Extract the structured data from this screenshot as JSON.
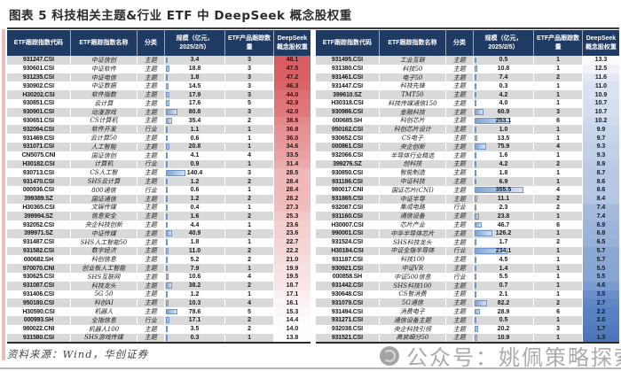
{
  "title": "图表 5  科技相关主题&行业 ETF 中 DeepSeek 概念股权重",
  "source": "资料来源：Wind，华创证券",
  "watermark": "公众号：姚佩策略探索",
  "columns": [
    "ETF跟踪指数代码",
    "ETF跟踪指数名称",
    "分类",
    "规模（亿元，2025/2/5）",
    "ETF产品跟踪数量",
    "DeepSeek概念股权重"
  ],
  "color_scale": {
    "min": 1.3,
    "mid": 13.55,
    "max": 48.1,
    "red": "#d95c5f",
    "blue": "#4a77bc",
    "white": "#ffffff"
  },
  "bar_max": 355.5,
  "left_rows": [
    {
      "code": "931247.CSI",
      "name": "中证信创",
      "cat": "主题",
      "scale": "3.4",
      "count": "3",
      "weight": "48.1"
    },
    {
      "code": "930601.CSI",
      "name": "中证软件",
      "cat": "主题",
      "scale": "18.8",
      "count": "3",
      "weight": "47.5"
    },
    {
      "code": "931235.CSI",
      "name": "中证电信",
      "cat": "主题",
      "scale": "1.8",
      "count": "3",
      "weight": "47.2"
    },
    {
      "code": "930902.CSI",
      "name": "中证数据",
      "cat": "主题",
      "scale": "14.5",
      "count": "3",
      "weight": "46.3"
    },
    {
      "code": "H30202.CSI",
      "name": "软件指数",
      "cat": "主题",
      "scale": "17.9",
      "count": "3",
      "weight": "44.0"
    },
    {
      "code": "930851.CSI",
      "name": "云计算",
      "cat": "主题",
      "scale": "17.6",
      "count": "5",
      "weight": "42.9"
    },
    {
      "code": "930901.CSI",
      "name": "动漫游戏",
      "cat": "主题",
      "scale": "80.8",
      "count": "3",
      "weight": "42.0"
    },
    {
      "code": "930651.CSI",
      "name": "CS计算机",
      "cat": "主题",
      "scale": "35.4",
      "count": "2",
      "weight": "38.6"
    },
    {
      "code": "932094.CSI",
      "name": "软件开发",
      "cat": "行业",
      "scale": "1.1",
      "count": "1",
      "weight": "36.8"
    },
    {
      "code": "931469.CSI",
      "name": "云计算50",
      "cat": "主题",
      "scale": "0.6",
      "count": "1",
      "weight": "36.0"
    },
    {
      "code": "931071.CSI",
      "name": "人工智能",
      "cat": "主题",
      "scale": "20.8",
      "count": "1",
      "weight": "34.6"
    },
    {
      "code": "CN5075.CNI",
      "name": "国证信创",
      "cat": "主题",
      "scale": "4.1",
      "count": "4",
      "weight": "33.5"
    },
    {
      "code": "H30182.CSI",
      "name": "计算机",
      "cat": "行业",
      "scale": "0.9",
      "count": "1",
      "weight": "31.4"
    },
    {
      "code": "930713.CSI",
      "name": "CS人工智",
      "cat": "主题",
      "scale": "140.4",
      "count": "3",
      "weight": "28.5"
    },
    {
      "code": "931470.CSI",
      "name": "SHS云计算",
      "cat": "主题",
      "scale": "1.2",
      "count": "2",
      "weight": "28.4"
    },
    {
      "code": "000936.CSI",
      "name": "800通信",
      "cat": "行业",
      "scale": "0.6",
      "count": "1",
      "weight": "28.4"
    },
    {
      "code": "399389.SZ",
      "name": "国证通信",
      "cat": "主题",
      "scale": "1.2",
      "count": "2",
      "weight": "28.2"
    },
    {
      "code": "H30365.CSI",
      "name": "文娱传媒",
      "cat": "主题",
      "scale": "0.4",
      "count": "1",
      "weight": "27.3"
    },
    {
      "code": "399994.SZ",
      "name": "信息安全",
      "cat": "主题",
      "scale": "1.6",
      "count": "2",
      "weight": "25.3"
    },
    {
      "code": "932052.CSI",
      "name": "央企科技创新",
      "cat": "主题",
      "scale": "4.4",
      "count": "1",
      "weight": "23.6"
    },
    {
      "code": "399971.SZ",
      "name": "中证传媒",
      "cat": "主题",
      "scale": "40.9",
      "count": "2",
      "weight": "23.6"
    },
    {
      "code": "931487.CSI",
      "name": "SHS人工智能50",
      "cat": "主题",
      "scale": "1.8",
      "count": "1",
      "weight": "22.7"
    },
    {
      "code": "931582.CSI",
      "name": "数字经济",
      "cat": "主题",
      "scale": "11.0",
      "count": "2",
      "weight": "22.2"
    },
    {
      "code": "000682.SH",
      "name": "科创信息",
      "cat": "主题",
      "scale": "5.2",
      "count": "2",
      "weight": "21.0"
    },
    {
      "code": "970070.CNI",
      "name": "创业板人工智能",
      "cat": "主题",
      "scale": "7.9",
      "count": "1",
      "weight": "19.9"
    },
    {
      "code": "930625.CSI",
      "name": "SHS互联网",
      "cat": "主题",
      "scale": "10.6",
      "count": "4",
      "weight": "19.5"
    },
    {
      "code": "931087.CSI",
      "name": "科技龙头",
      "cat": "主题",
      "scale": "38.2",
      "count": "2",
      "weight": "18.7"
    },
    {
      "code": "931406.CSI",
      "name": "5G 50",
      "cat": "主题",
      "scale": "1.2",
      "count": "1",
      "weight": "17.1"
    },
    {
      "code": "950180.CSI",
      "name": "科创AI",
      "cat": "主题",
      "scale": "10.3",
      "count": "4",
      "weight": "16.1"
    },
    {
      "code": "H30590.CSI",
      "name": "机器人",
      "cat": "主题",
      "scale": "78.6",
      "count": "5",
      "weight": "15.3"
    },
    {
      "code": "000993.SH",
      "name": "全指信息",
      "cat": "行业",
      "scale": "17.1",
      "count": "2",
      "weight": "14.4"
    },
    {
      "code": "980022.CNI",
      "name": "机器人100",
      "cat": "主题",
      "scale": "3.5",
      "count": "2",
      "weight": "14.0"
    },
    {
      "code": "931580.CSI",
      "name": "SHS游戏传媒",
      "cat": "主题",
      "scale": "0.3",
      "count": "1",
      "weight": "13.8"
    }
  ],
  "right_rows": [
    {
      "code": "931495.CSI",
      "name": "工业互联",
      "cat": "主题",
      "scale": "0.5",
      "count": "1",
      "weight": "13.3"
    },
    {
      "code": "931380.CSI",
      "name": "科技50",
      "cat": "主题",
      "scale": "10.8",
      "count": "1",
      "weight": "12.5"
    },
    {
      "code": "931461.CSI",
      "name": "电子50",
      "cat": "主题",
      "scale": "7.4",
      "count": "2",
      "weight": "11.6"
    },
    {
      "code": "931447.CSI",
      "name": "科技先锋",
      "cat": "主题",
      "scale": "0.3",
      "count": "1",
      "weight": "11.0"
    },
    {
      "code": "399610.SZ",
      "name": "TMT50",
      "cat": "主题",
      "scale": "4.2",
      "count": "1",
      "weight": "10.9"
    },
    {
      "code": "H30318.CSI",
      "name": "科技传媒通信150",
      "cat": "主题",
      "scale": "4.0",
      "count": "1",
      "weight": "10.7"
    },
    {
      "code": "930986.CSI",
      "name": "金融科技",
      "cat": "主题",
      "scale": "60.9",
      "count": "3",
      "weight": "10.7"
    },
    {
      "code": "000685.SH",
      "name": "科创芯片",
      "cat": "主题",
      "scale": "253.1",
      "count": "6",
      "weight": "10.2"
    },
    {
      "code": "950162.CSI",
      "name": "科创芯片设计",
      "cat": "主题",
      "scale": "1.0",
      "count": "1",
      "weight": "9.9"
    },
    {
      "code": "930652.CSI",
      "name": "CS电子",
      "cat": "主题",
      "scale": "13.5",
      "count": "1",
      "weight": "9.7"
    },
    {
      "code": "000861.CSI",
      "name": "央企创新",
      "cat": "主题",
      "scale": "75.9",
      "count": "4",
      "weight": "9.3"
    },
    {
      "code": "932066.CSI",
      "name": "半导体行业精选",
      "cat": "主题",
      "scale": "1.6",
      "count": "1",
      "weight": "9.3"
    },
    {
      "code": "399276.SZ",
      "name": "创科技",
      "cat": "主题",
      "scale": "4.2",
      "count": "2",
      "weight": "8.9"
    },
    {
      "code": "930850.CSI",
      "name": "智能制造",
      "cat": "主题",
      "scale": "1.8",
      "count": "1",
      "weight": "8.7"
    },
    {
      "code": "931186.CSI",
      "name": "中证科技",
      "cat": "主题",
      "scale": "6.9",
      "count": "1",
      "weight": "8.6"
    },
    {
      "code": "980017.CNI",
      "name": "国证芯片(CNI)",
      "cat": "主题",
      "scale": "355.5",
      "count": "4",
      "weight": "8.6"
    },
    {
      "code": "931865.CSI",
      "name": "中证半导",
      "cat": "主题",
      "scale": "11.1",
      "count": "2",
      "weight": "8.4"
    },
    {
      "code": "932087.CSI",
      "name": "集成电路",
      "cat": "行业",
      "scale": "2.3",
      "count": "2",
      "weight": "7.4"
    },
    {
      "code": "931160.CSI",
      "name": "通信设备",
      "cat": "主题",
      "scale": "23.8",
      "count": "1",
      "weight": "7.4"
    },
    {
      "code": "H30007.CSI",
      "name": "芯片产业",
      "cat": "主题",
      "scale": "46.7",
      "count": "6",
      "weight": "6.9"
    },
    {
      "code": "990001.CSI",
      "name": "中华半导体芯片",
      "cat": "主题",
      "scale": "126.2",
      "count": "1",
      "weight": "6.8"
    },
    {
      "code": "931524.CSI",
      "name": "SHS科技龙头",
      "cat": "主题",
      "scale": "1.7",
      "count": "2",
      "weight": "6.5"
    },
    {
      "code": "H30184.CSI",
      "name": "中证全指半导体",
      "cat": "行业",
      "scale": "234.1",
      "count": "1",
      "weight": "5.7"
    },
    {
      "code": "931187.CSI",
      "name": "科技100",
      "cat": "主题",
      "scale": "4.5",
      "count": "1",
      "weight": "5.7"
    },
    {
      "code": "930921.CSI",
      "name": "中证VR",
      "cat": "主题",
      "scale": "1.4",
      "count": "1",
      "weight": "5.5"
    },
    {
      "code": "000858.SH",
      "name": "中证500信息",
      "cat": "行业",
      "scale": "5.5",
      "count": "1",
      "weight": "5.5"
    },
    {
      "code": "931442.CSI",
      "name": "SHS科技100",
      "cat": "主题",
      "scale": "0.7",
      "count": "1",
      "weight": "4.6"
    },
    {
      "code": "930648.CSI",
      "name": "CS智消费",
      "cat": "主题",
      "scale": "2.1",
      "count": "1",
      "weight": "3.5"
    },
    {
      "code": "931079.CSI",
      "name": "5G通信",
      "cat": "主题",
      "scale": "82.2",
      "count": "2",
      "weight": "2.7"
    },
    {
      "code": "931494.CSI",
      "name": "消费电子",
      "cat": "主题",
      "scale": "28.9",
      "count": "6",
      "weight": "2.2"
    },
    {
      "code": "931271.CSI",
      "name": "通信设备主题",
      "cat": "主题",
      "scale": "0.5",
      "count": "1",
      "weight": "2.0"
    },
    {
      "code": "932038.CSI",
      "name": "央企科技引领",
      "cat": "主题",
      "scale": "20.2",
      "count": "3",
      "weight": "1.7"
    },
    {
      "code": "931521.CSI",
      "name": "高装细分50",
      "cat": "主题",
      "scale": "10.9",
      "count": "1",
      "weight": "1.3"
    }
  ]
}
